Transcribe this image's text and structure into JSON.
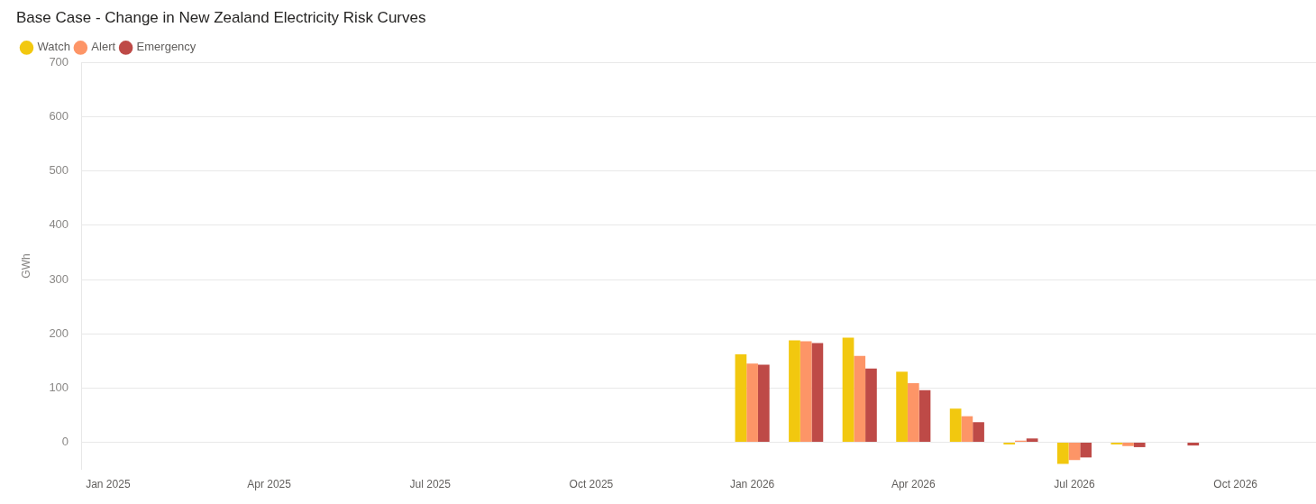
{
  "chart_data": {
    "type": "bar",
    "title": "Base Case - Change in New Zealand Electricity Risk Curves",
    "ylabel": "GWh",
    "categories": [
      "Jan 2025",
      null,
      null,
      "Apr 2025",
      null,
      null,
      "Jul 2025",
      null,
      null,
      "Oct 2025",
      null,
      null,
      "Jan 2026",
      null,
      null,
      "Apr 2026",
      null,
      null,
      "Jul 2026",
      null,
      null,
      "Oct 2026",
      null
    ],
    "series": [
      {
        "name": "Watch",
        "color": "#f2c80f",
        "values": [
          null,
          null,
          null,
          null,
          null,
          null,
          null,
          null,
          null,
          null,
          null,
          null,
          162,
          188,
          193,
          130,
          62,
          -4,
          -40,
          -4,
          null,
          null,
          null
        ]
      },
      {
        "name": "Alert",
        "color": "#fd9567",
        "values": [
          null,
          null,
          null,
          null,
          null,
          null,
          null,
          null,
          null,
          null,
          null,
          null,
          145,
          186,
          159,
          109,
          48,
          3,
          -33,
          -7,
          null,
          null,
          null
        ]
      },
      {
        "name": "Emergency",
        "color": "#be4a47",
        "values": [
          null,
          null,
          null,
          null,
          null,
          null,
          null,
          null,
          null,
          null,
          null,
          null,
          143,
          183,
          136,
          96,
          37,
          7,
          -28,
          -9,
          -6,
          null,
          null
        ]
      }
    ],
    "ylim": [
      -50,
      700
    ],
    "yticks": [
      0,
      100,
      200,
      300,
      400,
      500,
      600,
      700
    ],
    "grid": "y",
    "legend": "top left"
  }
}
